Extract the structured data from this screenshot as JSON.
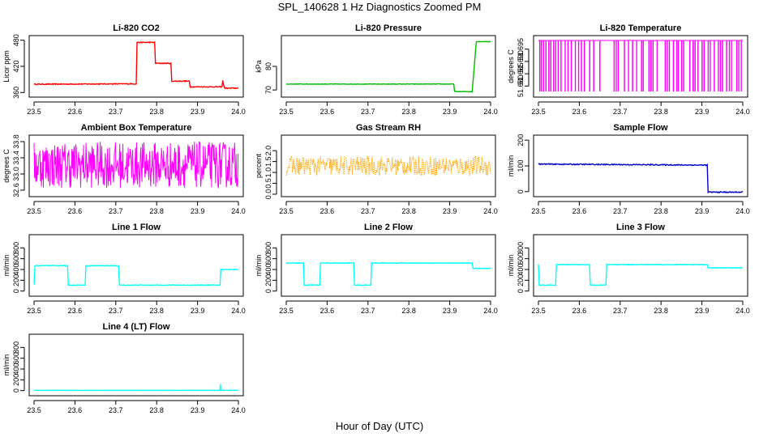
{
  "figure_title": "SPL_140628  1 Hz Diagnostics Zoomed PM",
  "x_axis_label": "Hour of Day (UTC)",
  "chart_data": [
    {
      "id": "li820-co2",
      "type": "line",
      "title": "Li-820 CO2",
      "ylabel": "Licor ppm",
      "color": "#ff0000",
      "xlim": [
        23.5,
        24.0
      ],
      "ylim": [
        355,
        485
      ],
      "xticks": [
        "23.5",
        "23.6",
        "23.7",
        "23.8",
        "23.9",
        "24.0"
      ],
      "yticks": [
        "360",
        "420",
        "480"
      ],
      "x": [
        23.5,
        23.75,
        23.752,
        23.795,
        23.797,
        23.835,
        23.837,
        23.88,
        23.882,
        23.96,
        23.962,
        23.965,
        23.967,
        24.0
      ],
      "y": [
        379,
        380,
        475,
        475,
        427,
        427,
        386,
        386,
        373,
        373,
        387,
        373,
        370,
        370
      ],
      "noise": 1
    },
    {
      "id": "li820-pressure",
      "type": "line",
      "title": "Li-820 Pressure",
      "ylabel": "kPa",
      "color": "#00bb00",
      "xlim": [
        23.5,
        24.0
      ],
      "ylim": [
        68,
        92
      ],
      "xticks": [
        "23.5",
        "23.6",
        "23.7",
        "23.8",
        "23.9",
        "24.0"
      ],
      "yticks": [
        "70",
        "80"
      ],
      "x": [
        23.5,
        23.75,
        23.91,
        23.912,
        23.955,
        23.965,
        23.97,
        24.0
      ],
      "y": [
        72.5,
        72.5,
        72.5,
        69.3,
        69.3,
        90.5,
        90.5,
        90.5
      ],
      "noise": 0.1
    },
    {
      "id": "li820-temperature",
      "type": "spikes",
      "title": "Li-820 Temperature",
      "ylabel": "degrees C",
      "color": "#ff00ff",
      "xlim": [
        23.5,
        24.0
      ],
      "ylim": [
        51.6765,
        51.6995
      ],
      "xticks": [
        "23.5",
        "23.6",
        "23.7",
        "23.8",
        "23.9",
        "24.0"
      ],
      "yticks": [
        "51.680",
        "51.685",
        "51.690",
        "51.695"
      ],
      "baseline": 51.6985,
      "low": 51.678,
      "spike_x": [
        23.503,
        23.507,
        23.512,
        23.518,
        23.525,
        23.53,
        23.537,
        23.542,
        23.548,
        23.555,
        23.565,
        23.572,
        23.58,
        23.59,
        23.598,
        23.605,
        23.612,
        23.625,
        23.635,
        23.65,
        23.685,
        23.69,
        23.695,
        23.71,
        23.72,
        23.73,
        23.74,
        23.752,
        23.756,
        23.77,
        23.775,
        23.78,
        23.79,
        23.81,
        23.815,
        23.82,
        23.83,
        23.838,
        23.842,
        23.85,
        23.855,
        23.87,
        23.878,
        23.883,
        23.89,
        23.9,
        23.905,
        23.915,
        23.92,
        23.93,
        23.94,
        23.945,
        23.95,
        23.96,
        23.967,
        23.972,
        23.985,
        23.99,
        23.996
      ]
    },
    {
      "id": "ambient-box-temperature",
      "type": "noise",
      "title": "Ambient Box Temperature",
      "ylabel": "degrees C",
      "color": "#ff00ff",
      "xlim": [
        23.5,
        24.0
      ],
      "ylim": [
        32.5,
        33.9
      ],
      "xticks": [
        "23.5",
        "23.6",
        "23.7",
        "23.8",
        "23.9",
        "24.0"
      ],
      "yticks": [
        "32.6",
        "33.0",
        "33.4",
        "33.8"
      ],
      "low": 32.65,
      "high": 33.8,
      "step": 0.0012
    },
    {
      "id": "gas-stream-rh",
      "type": "noise-dotted",
      "title": "Gas Stream RH",
      "ylabel": "percent",
      "color": "#ffa500",
      "xlim": [
        23.5,
        24.0
      ],
      "ylim": [
        0,
        2.6
      ],
      "xticks": [
        "23.5",
        "23.6",
        "23.7",
        "23.8",
        "23.9",
        "24.0"
      ],
      "yticks": [
        "0.0",
        "0.5",
        "1.0",
        "1.5",
        "2.0"
      ],
      "low": 0.85,
      "high": 1.75,
      "step": 0.0015
    },
    {
      "id": "sample-flow",
      "type": "line",
      "title": "Sample Flow",
      "ylabel": "ml/min",
      "color": "#0000cc",
      "xlim": [
        23.5,
        24.0
      ],
      "ylim": [
        -10,
        210
      ],
      "xticks": [
        "23.5",
        "23.6",
        "23.7",
        "23.8",
        "23.9",
        "24.0"
      ],
      "yticks": [
        "0",
        "100",
        "200"
      ],
      "x": [
        23.5,
        23.913,
        23.915,
        24.0
      ],
      "y": [
        107,
        103,
        -2,
        -2
      ],
      "noise": 2
    },
    {
      "id": "line1-flow",
      "type": "line",
      "title": "Line 1 Flow",
      "ylabel": "ml/min",
      "color": "#00ffff",
      "xlim": [
        23.5,
        24.0
      ],
      "ylim": [
        -50,
        1000
      ],
      "xticks": [
        "23.5",
        "23.6",
        "23.7",
        "23.8",
        "23.9",
        "24.0"
      ],
      "yticks": [
        "0",
        "200",
        "400",
        "600",
        "800"
      ],
      "x": [
        23.5,
        23.502,
        23.582,
        23.584,
        23.625,
        23.627,
        23.707,
        23.709,
        23.955,
        23.957,
        24.0
      ],
      "y": [
        120,
        470,
        470,
        110,
        110,
        470,
        470,
        110,
        110,
        400,
        400
      ],
      "noise": 6
    },
    {
      "id": "line2-flow",
      "type": "line",
      "title": "Line 2 Flow",
      "ylabel": "ml/min",
      "color": "#00ffff",
      "xlim": [
        23.5,
        24.0
      ],
      "ylim": [
        -50,
        1000
      ],
      "xticks": [
        "23.5",
        "23.6",
        "23.7",
        "23.8",
        "23.9",
        "24.0"
      ],
      "yticks": [
        "0",
        "200",
        "400",
        "600",
        "800"
      ],
      "x": [
        23.5,
        23.542,
        23.544,
        23.582,
        23.584,
        23.665,
        23.667,
        23.707,
        23.709,
        23.955,
        23.957,
        24.0
      ],
      "y": [
        520,
        520,
        110,
        110,
        520,
        520,
        110,
        110,
        520,
        520,
        420,
        420
      ],
      "noise": 6
    },
    {
      "id": "line3-flow",
      "type": "line",
      "title": "Line 3 Flow",
      "ylabel": "ml/min",
      "color": "#00ffff",
      "xlim": [
        23.5,
        24.0
      ],
      "ylim": [
        -50,
        1000
      ],
      "xticks": [
        "23.5",
        "23.6",
        "23.7",
        "23.8",
        "23.9",
        "24.0"
      ],
      "yticks": [
        "0",
        "200",
        "400",
        "600",
        "800"
      ],
      "x": [
        23.5,
        23.502,
        23.542,
        23.544,
        23.625,
        23.627,
        23.665,
        23.667,
        23.913,
        23.915,
        24.0
      ],
      "y": [
        500,
        110,
        110,
        490,
        490,
        110,
        110,
        490,
        490,
        430,
        430
      ],
      "noise": 6
    },
    {
      "id": "line4-flow",
      "type": "line",
      "title": "Line 4 (LT) Flow",
      "ylabel": "ml/min",
      "color": "#00ffff",
      "xlim": [
        23.5,
        24.0
      ],
      "ylim": [
        -50,
        1000
      ],
      "xticks": [
        "23.5",
        "23.6",
        "23.7",
        "23.8",
        "23.9",
        "24.0"
      ],
      "yticks": [
        "0",
        "200",
        "400",
        "600",
        "800"
      ],
      "x": [
        23.5,
        23.955,
        23.956,
        23.957,
        24.0
      ],
      "y": [
        5,
        5,
        120,
        5,
        5
      ],
      "noise": 1
    }
  ]
}
